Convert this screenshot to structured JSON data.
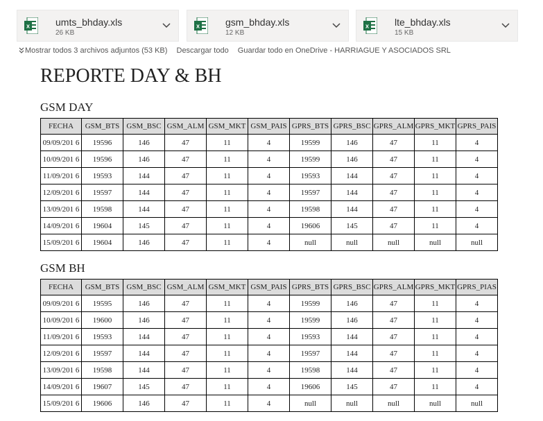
{
  "attachments": [
    {
      "name": "umts_bhday.xls",
      "size": "26 KB"
    },
    {
      "name": "gsm_bhday.xls",
      "size": "12 KB"
    },
    {
      "name": "lte_bhday.xls",
      "size": "15 KB"
    }
  ],
  "attachment_links": {
    "show_all": "Mostrar todos 3 archivos adjuntos (53 KB)",
    "download_all": "Descargar todo",
    "save_onedrive": "Guardar todo en OneDrive - HARRIAGUE Y ASOCIADOS SRL"
  },
  "colors": {
    "excel_green": "#1e7145",
    "header_bg": "#dcdcdc"
  },
  "report_title": "REPORTE DAY & BH",
  "gsm_day": {
    "title": "GSM DAY",
    "headers": [
      "FECHA",
      "GSM_BTS",
      "GSM_BSC",
      "GSM_ALM",
      "GSM_MKT",
      "GSM_PAIS",
      "GPRS_BTS",
      "GPRS_BSC",
      "GPRS_ALM",
      "GPRS_MKT",
      "GPRS_PAIS"
    ],
    "rows": [
      [
        "09/09/201 6",
        "19596",
        "146",
        "47",
        "11",
        "4",
        "19599",
        "146",
        "47",
        "11",
        "4"
      ],
      [
        "10/09/201 6",
        "19596",
        "146",
        "47",
        "11",
        "4",
        "19599",
        "146",
        "47",
        "11",
        "4"
      ],
      [
        "11/09/201 6",
        "19593",
        "144",
        "47",
        "11",
        "4",
        "19593",
        "144",
        "47",
        "11",
        "4"
      ],
      [
        "12/09/201 6",
        "19597",
        "144",
        "47",
        "11",
        "4",
        "19597",
        "144",
        "47",
        "11",
        "4"
      ],
      [
        "13/09/201 6",
        "19598",
        "144",
        "47",
        "11",
        "4",
        "19598",
        "144",
        "47",
        "11",
        "4"
      ],
      [
        "14/09/201 6",
        "19604",
        "145",
        "47",
        "11",
        "4",
        "19606",
        "145",
        "47",
        "11",
        "4"
      ],
      [
        "15/09/201 6",
        "19604",
        "146",
        "47",
        "11",
        "4",
        "null",
        "null",
        "null",
        "null",
        "null"
      ]
    ]
  },
  "gsm_bh": {
    "title": "GSM BH",
    "headers": [
      "FECHA",
      "GSM_BTS",
      "GSM_BSC",
      "GSM_ALM",
      "GSM_MKT",
      "GSM_PAIS",
      "GPRS_BTS",
      "GPRS_BSC",
      "GPRS_ALM",
      "GPRS_MKT",
      "GPRS_PIAS"
    ],
    "rows": [
      [
        "09/09/201 6",
        "19595",
        "146",
        "47",
        "11",
        "4",
        "19599",
        "146",
        "47",
        "11",
        "4"
      ],
      [
        "10/09/201 6",
        "19600",
        "146",
        "47",
        "11",
        "4",
        "19599",
        "146",
        "47",
        "11",
        "4"
      ],
      [
        "11/09/201 6",
        "19593",
        "144",
        "47",
        "11",
        "4",
        "19593",
        "144",
        "47",
        "11",
        "4"
      ],
      [
        "12/09/201 6",
        "19597",
        "144",
        "47",
        "11",
        "4",
        "19597",
        "144",
        "47",
        "11",
        "4"
      ],
      [
        "13/09/201 6",
        "19598",
        "144",
        "47",
        "11",
        "4",
        "19598",
        "144",
        "47",
        "11",
        "4"
      ],
      [
        "14/09/201 6",
        "19607",
        "145",
        "47",
        "11",
        "4",
        "19606",
        "145",
        "47",
        "11",
        "4"
      ],
      [
        "15/09/201 6",
        "19606",
        "146",
        "47",
        "11",
        "4",
        "null",
        "null",
        "null",
        "null",
        "null"
      ]
    ]
  }
}
